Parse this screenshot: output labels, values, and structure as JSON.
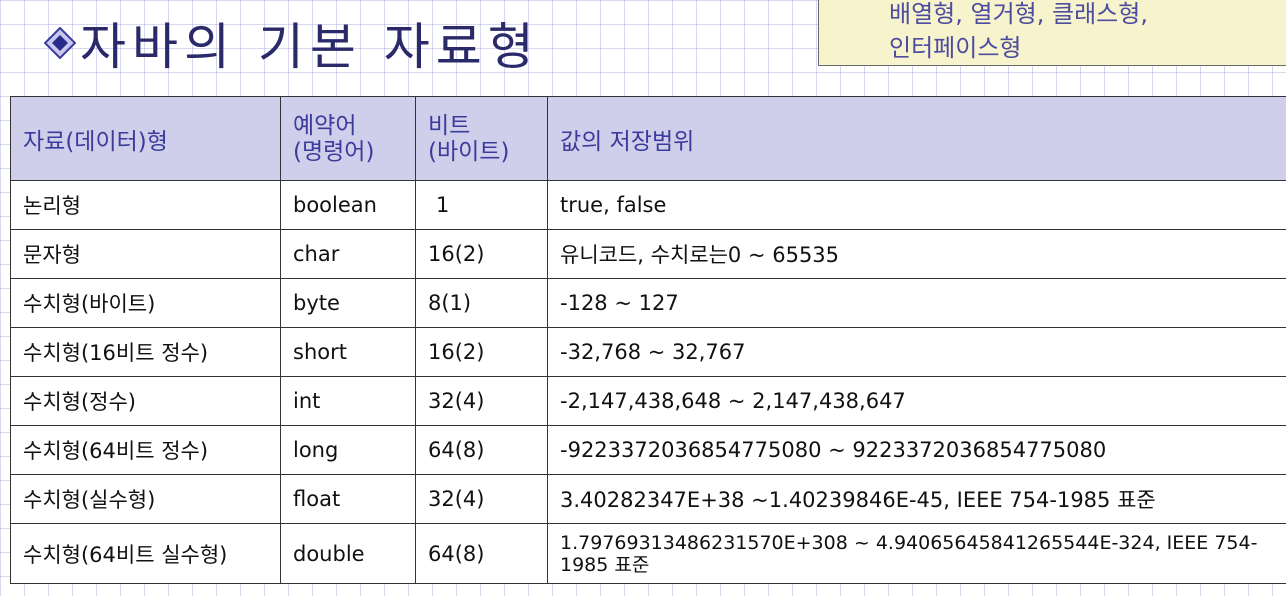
{
  "title": "자바의 기본 자료형",
  "title_icon": "diamond-bullet-icon",
  "note": {
    "lines": [
      "배열형, 열거형, 클래스형,",
      "인터페이스형"
    ]
  },
  "table": {
    "headers": {
      "col1": "자료(데이터)형",
      "col2_line1": "예약어",
      "col2_line2": "(명령어)",
      "col3_line1": "비트",
      "col3_line2": "(바이트)",
      "col4": "값의 저장범위"
    },
    "rows": [
      {
        "type": "논리형",
        "keyword": "boolean",
        "bits": "1",
        "range": "true, false"
      },
      {
        "type": "문자형",
        "keyword": "char",
        "bits": "16(2)",
        "range": "유니코드, 수치로는0 ~ 65535"
      },
      {
        "type": "수치형(바이트)",
        "keyword": "byte",
        "bits": "8(1)",
        "range": "-128 ~ 127"
      },
      {
        "type": "수치형(16비트 정수)",
        "keyword": "short",
        "bits": "16(2)",
        "range": "-32,768 ~ 32,767"
      },
      {
        "type": "수치형(정수)",
        "keyword": "int",
        "bits": "32(4)",
        "range": "-2,147,438,648 ~ 2,147,438,647"
      },
      {
        "type": "수치형(64비트 정수)",
        "keyword": "long",
        "bits": "64(8)",
        "range": "-9223372036854775080 ~ 9223372036854775080"
      },
      {
        "type": "수치형(실수형)",
        "keyword": "float",
        "bits": "32(4)",
        "range": "3.40282347E+38 ~1.40239846E-45, IEEE 754-1985 표준"
      },
      {
        "type": "수치형(64비트 실수형)",
        "keyword": "double",
        "bits": "64(8)",
        "range": "1.79769313486231570E+308  ~  4.94065645841265544E-324, IEEE 754- 1985 표준"
      }
    ]
  },
  "colors": {
    "header_bg": "#cfcfeb",
    "header_text": "#3b3b9c",
    "title_text": "#2a2a6a",
    "note_bg": "#f7f3cc"
  }
}
